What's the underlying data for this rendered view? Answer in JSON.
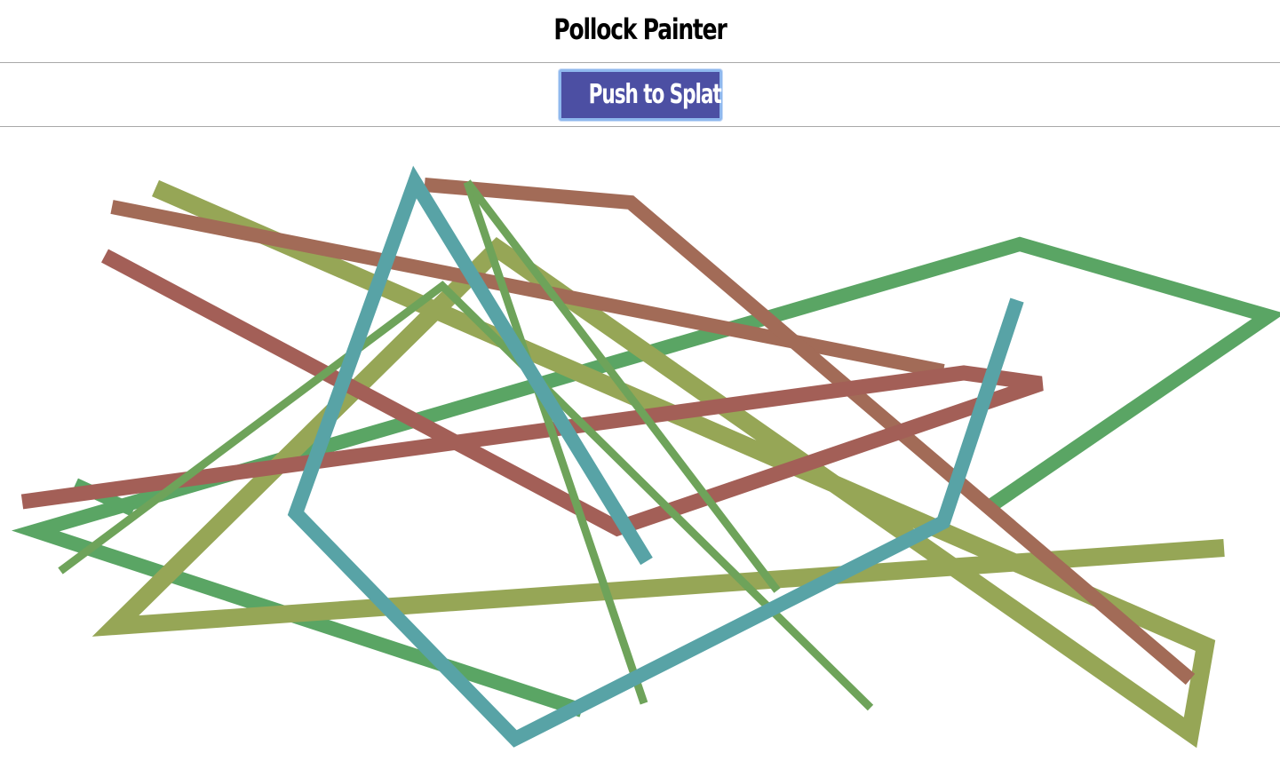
{
  "header": {
    "title": "Pollock Painter"
  },
  "toolbar": {
    "splat_label": "Push to Splat!"
  },
  "colors": {
    "button_bg": "#4c4fa3",
    "button_border": "#8fb8ee",
    "paint": [
      "#5aa564",
      "#a26b57",
      "#96a656",
      "#a35f57",
      "#58a3a6",
      "#6ea35a"
    ]
  }
}
